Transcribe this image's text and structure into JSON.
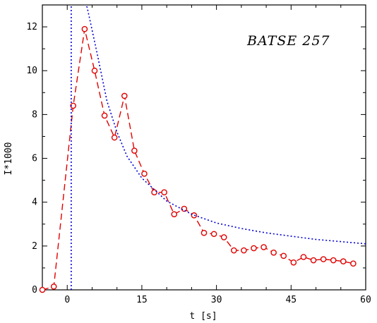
{
  "chart_data": {
    "type": "line",
    "annotation": "BATSE 257",
    "xlabel": "t [s]",
    "ylabel": "I*1000",
    "xlim": [
      -5,
      60
    ],
    "ylim": [
      0,
      13
    ],
    "xticks": [
      0,
      15,
      30,
      45,
      60
    ],
    "yticks": [
      0,
      2,
      4,
      6,
      8,
      10,
      12
    ],
    "grid": false,
    "series": [
      {
        "style": "markers-and-line",
        "color": "#e00000",
        "x": [
          -5,
          -2.7,
          1.2,
          3.5,
          5.5,
          7.5,
          9.5,
          11.5,
          13.5,
          15.5,
          17.5,
          19.5,
          21.5,
          23.5,
          25.5,
          27.5,
          29.5,
          31.5,
          33.5,
          35.5,
          37.5,
          39.5,
          41.5,
          43.5,
          45.5,
          47.5,
          49.5,
          51.5,
          53.5,
          55.5,
          57.5
        ],
        "y": [
          0.0,
          0.15,
          8.4,
          11.9,
          10.0,
          7.95,
          6.95,
          8.85,
          6.35,
          5.3,
          4.45,
          4.45,
          3.45,
          3.7,
          3.4,
          2.6,
          2.55,
          2.4,
          1.8,
          1.8,
          1.9,
          1.95,
          1.7,
          1.55,
          1.25,
          1.5,
          1.35,
          1.4,
          1.35,
          1.3,
          1.2
        ]
      },
      {
        "style": "dotted",
        "color": "#0000d0",
        "x": [
          0.8,
          4,
          6,
          8,
          10,
          12,
          15,
          20,
          25,
          30,
          35,
          40,
          45,
          50,
          55,
          60
        ],
        "y": [
          0,
          12.9,
          10.8,
          8.6,
          7.2,
          6.1,
          5.1,
          4.05,
          3.45,
          3.05,
          2.8,
          2.6,
          2.45,
          2.3,
          2.2,
          2.1
        ]
      }
    ]
  }
}
